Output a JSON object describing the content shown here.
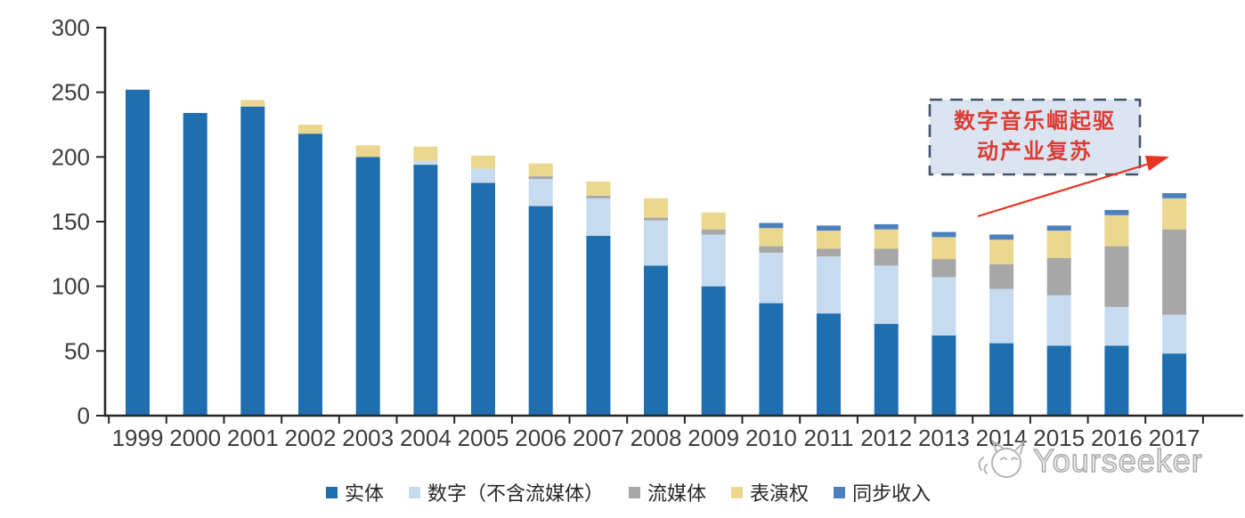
{
  "chart_data": {
    "type": "bar",
    "stacked": true,
    "title": "",
    "categories": [
      "1999",
      "2000",
      "2001",
      "2002",
      "2003",
      "2004",
      "2005",
      "2006",
      "2007",
      "2008",
      "2009",
      "2010",
      "2011",
      "2012",
      "2013",
      "2014",
      "2015",
      "2016",
      "2017"
    ],
    "series": [
      {
        "name": "实体",
        "color": "#1F6EAF",
        "values": [
          252,
          234,
          239,
          218,
          200,
          194,
          180,
          162,
          139,
          116,
          100,
          87,
          79,
          71,
          62,
          56,
          54,
          54,
          48
        ]
      },
      {
        "name": "数字（不含流媒体）",
        "color": "#C6DBF0",
        "values": [
          0,
          0,
          0,
          0,
          0,
          3,
          11,
          21,
          29,
          35,
          40,
          39,
          44,
          45,
          45,
          42,
          39,
          30,
          30
        ]
      },
      {
        "name": "流媒体",
        "color": "#A7A7A7",
        "values": [
          0,
          0,
          0,
          0,
          0,
          0,
          0,
          2,
          2,
          2,
          4,
          5,
          6,
          13,
          14,
          19,
          29,
          47,
          66
        ]
      },
      {
        "name": "表演权",
        "color": "#EBD78E",
        "values": [
          0,
          0,
          5,
          7,
          9,
          11,
          10,
          10,
          11,
          15,
          13,
          14,
          14,
          15,
          17,
          19,
          21,
          24,
          24
        ]
      },
      {
        "name": "同步收入",
        "color": "#4D81BD",
        "values": [
          0,
          0,
          0,
          0,
          0,
          0,
          0,
          0,
          0,
          0,
          0,
          4,
          4,
          4,
          4,
          4,
          4,
          4,
          4
        ]
      }
    ],
    "ylim": [
      0,
      300
    ],
    "yticks": [
      0,
      50,
      100,
      150,
      200,
      250,
      300
    ],
    "grid": false,
    "legend_position": "bottom"
  },
  "axis": {
    "line_color": "#262626",
    "label_color": "#3d3d3d"
  },
  "annotation": {
    "line1": "数字音乐崛起驱",
    "line2": "动产业复苏",
    "text_color": "#DE3B32",
    "box_fill": "#DBE5F2",
    "box_border": "#44546A",
    "arrow_color": "#E93323"
  },
  "watermark": {
    "text": "Yourseeker",
    "logo": "cat-logo"
  }
}
